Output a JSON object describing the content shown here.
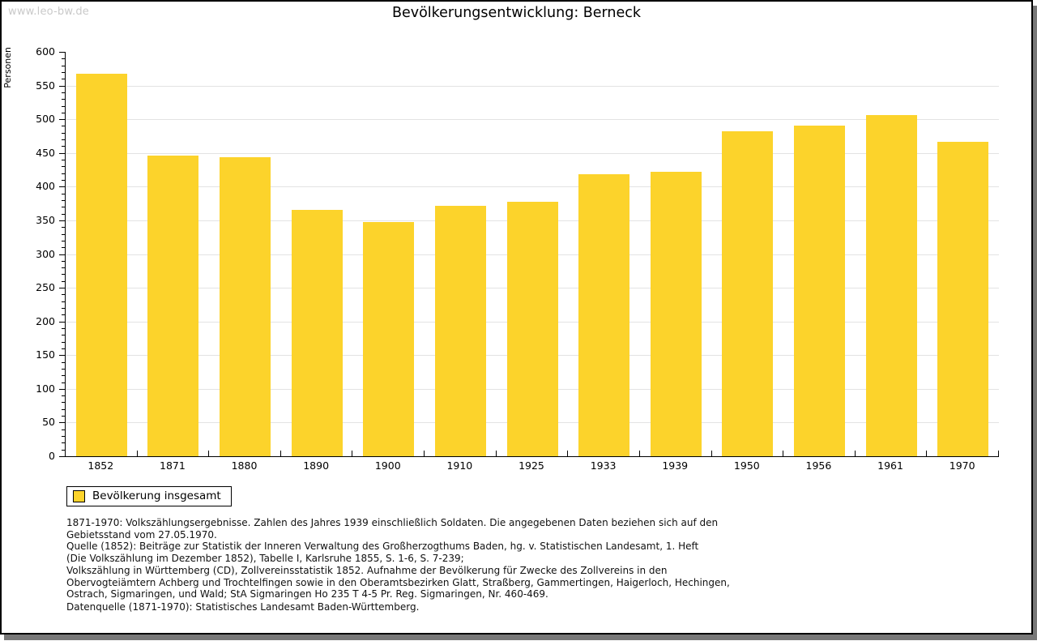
{
  "page": {
    "watermark": "www.leo-bw.de",
    "title": "Bevölkerungsentwicklung: Berneck"
  },
  "chart_data": {
    "type": "bar",
    "title": "Bevölkerungsentwicklung: Berneck",
    "xlabel": "",
    "ylabel": "Personen",
    "ylim": [
      0,
      600
    ],
    "ytick_major_step": 50,
    "ytick_minor_step": 10,
    "grid": "horizontal-major-gridlines",
    "legend_position": "bottom-left",
    "bar_color": "#FCD32B",
    "axis_color": "#000000",
    "gridline_color": "#e3e3e3",
    "categories": [
      "1852",
      "1871",
      "1880",
      "1890",
      "1900",
      "1910",
      "1925",
      "1933",
      "1939",
      "1950",
      "1956",
      "1961",
      "1970"
    ],
    "series": [
      {
        "name": "Bevölkerung insgesamt",
        "values": [
          567,
          446,
          444,
          366,
          347,
          372,
          378,
          418,
          422,
          482,
          490,
          506,
          466
        ]
      }
    ]
  },
  "legend": {
    "label": "Bevölkerung insgesamt"
  },
  "notes": {
    "lines": [
      "1871-1970: Volkszählungsergebnisse. Zahlen des Jahres 1939 einschließlich Soldaten. Die angegebenen Daten beziehen sich auf den",
      "Gebietsstand vom 27.05.1970.",
      "Quelle (1852): Beiträge zur Statistik der Inneren Verwaltung des Großherzogthums Baden, hg. v. Statistischen Landesamt, 1. Heft",
      "(Die Volkszählung im Dezember 1852), Tabelle I, Karlsruhe 1855, S. 1-6, S. 7-239;",
      "Volkszählung in Württemberg (CD), Zollvereinsstatistik 1852. Aufnahme der Bevölkerung für Zwecke des Zollvereins in den",
      "Obervogteiämtern Achberg und Trochtelfingen sowie in den Oberamtsbezirken Glatt, Straßberg, Gammertingen, Haigerloch, Hechingen,",
      "Ostrach, Sigmaringen, und Wald; StA Sigmaringen Ho 235 T 4-5 Pr. Reg. Sigmaringen, Nr. 460-469."
    ],
    "datasource": "Datenquelle (1871-1970): Statistisches Landesamt Baden-Württemberg."
  }
}
